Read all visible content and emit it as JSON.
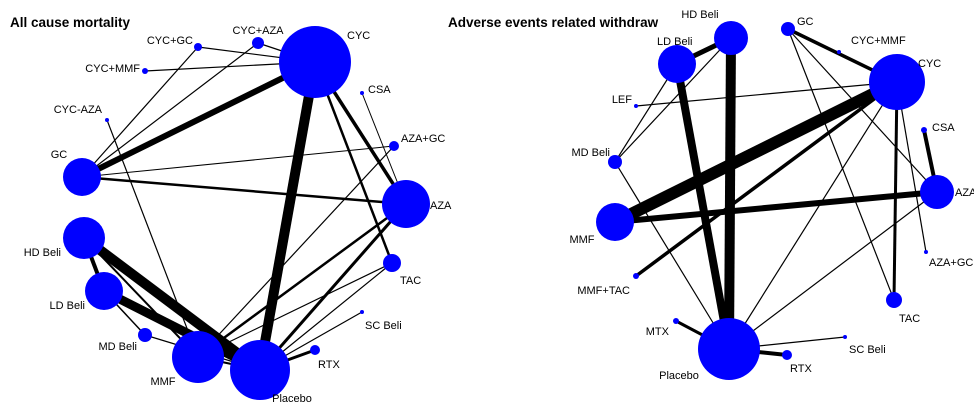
{
  "colors": {
    "node": "#0000ff",
    "edge": "#000000",
    "background": "#ffffff"
  },
  "panels": [
    {
      "id": "left",
      "title": "All cause mortality",
      "nodes": [
        {
          "id": "CYC",
          "label": "CYC",
          "size": 10
        },
        {
          "id": "CYC+AZA",
          "label": "CYC+AZA",
          "size": 1.6
        },
        {
          "id": "CYC+GC",
          "label": "CYC+GC",
          "size": 1.2
        },
        {
          "id": "CYC+MMF",
          "label": "CYC+MMF",
          "size": 0.8
        },
        {
          "id": "CYC-AZA",
          "label": "CYC-AZA",
          "size": 0.6
        },
        {
          "id": "GC",
          "label": "GC",
          "size": 4.6
        },
        {
          "id": "HD Beli",
          "label": "HD Beli",
          "size": 5
        },
        {
          "id": "LD Beli",
          "label": "LD Beli",
          "size": 4.6
        },
        {
          "id": "MD Beli",
          "label": "MD Beli",
          "size": 1.8
        },
        {
          "id": "MMF",
          "label": "MMF",
          "size": 6.2
        },
        {
          "id": "Placebo",
          "label": "Placebo",
          "size": 7.5
        },
        {
          "id": "RTX",
          "label": "RTX",
          "size": 1.2
        },
        {
          "id": "SC Beli",
          "label": "SC Beli",
          "size": 0.6
        },
        {
          "id": "TAC",
          "label": "TAC",
          "size": 2.2
        },
        {
          "id": "AZA",
          "label": "AZA",
          "size": 5.5
        },
        {
          "id": "AZA+GC",
          "label": "AZA+GC",
          "size": 1.2
        },
        {
          "id": "CSA",
          "label": "CSA",
          "size": 0.6
        }
      ],
      "edges": [
        {
          "from": "CYC",
          "to": "GC",
          "weight": 6
        },
        {
          "from": "CYC",
          "to": "Placebo",
          "weight": 10
        },
        {
          "from": "CYC",
          "to": "AZA",
          "weight": 3.5
        },
        {
          "from": "CYC",
          "to": "TAC",
          "weight": 2.5
        },
        {
          "from": "CYC",
          "to": "CYC+AZA",
          "weight": 1.2
        },
        {
          "from": "CYC",
          "to": "CYC+GC",
          "weight": 1.2
        },
        {
          "from": "CYC",
          "to": "CYC+MMF",
          "weight": 1.2
        },
        {
          "from": "CYC+AZA",
          "to": "GC",
          "weight": 1.2
        },
        {
          "from": "CYC+GC",
          "to": "GC",
          "weight": 1.2
        },
        {
          "from": "CYC-AZA",
          "to": "MMF",
          "weight": 1.2
        },
        {
          "from": "GC",
          "to": "AZA",
          "weight": 2.5
        },
        {
          "from": "GC",
          "to": "AZA+GC",
          "weight": 1
        },
        {
          "from": "CSA",
          "to": "AZA",
          "weight": 1
        },
        {
          "from": "HD Beli",
          "to": "LD Beli",
          "weight": 4
        },
        {
          "from": "HD Beli",
          "to": "Placebo",
          "weight": 10
        },
        {
          "from": "HD Beli",
          "to": "MMF",
          "weight": 2
        },
        {
          "from": "LD Beli",
          "to": "Placebo",
          "weight": 9
        },
        {
          "from": "LD Beli",
          "to": "MD Beli",
          "weight": 1.5
        },
        {
          "from": "MD Beli",
          "to": "Placebo",
          "weight": 1.2
        },
        {
          "from": "Placebo",
          "to": "AZA",
          "weight": 3
        },
        {
          "from": "Placebo",
          "to": "TAC",
          "weight": 1.2
        },
        {
          "from": "Placebo",
          "to": "RTX",
          "weight": 3
        },
        {
          "from": "Placebo",
          "to": "SC Beli",
          "weight": 1.2
        },
        {
          "from": "MMF",
          "to": "AZA",
          "weight": 2.5
        },
        {
          "from": "MMF",
          "to": "AZA+GC",
          "weight": 1.2
        },
        {
          "from": "MMF",
          "to": "Placebo",
          "weight": 2
        },
        {
          "from": "MMF",
          "to": "TAC",
          "weight": 1.2
        }
      ]
    },
    {
      "id": "right",
      "title": "Adverse events related withdraw",
      "nodes": [
        {
          "id": "HD Beli",
          "label": "HD Beli",
          "size": 3.2
        },
        {
          "id": "GC",
          "label": "GC",
          "size": 1.2
        },
        {
          "id": "LD Beli",
          "label": "LD Beli",
          "size": 3.6
        },
        {
          "id": "CYC+MMF",
          "label": "CYC+MMF",
          "size": 0.6
        },
        {
          "id": "CYC",
          "label": "CYC",
          "size": 7
        },
        {
          "id": "LEF",
          "label": "LEF",
          "size": 0.6
        },
        {
          "id": "CSA",
          "label": "CSA",
          "size": 0.8
        },
        {
          "id": "MD Beli",
          "label": "MD Beli",
          "size": 1.2
        },
        {
          "id": "AZA",
          "label": "AZA",
          "size": 3
        },
        {
          "id": "MMF",
          "label": "MMF",
          "size": 5
        },
        {
          "id": "AZA+GC",
          "label": "AZA+GC",
          "size": 0.6
        },
        {
          "id": "MMF+TAC",
          "label": "MMF+TAC",
          "size": 0.8
        },
        {
          "id": "TAC",
          "label": "TAC",
          "size": 1.6
        },
        {
          "id": "MTX",
          "label": "MTX",
          "size": 0.8
        },
        {
          "id": "Placebo",
          "label": "Placebo",
          "size": 10
        },
        {
          "id": "RTX",
          "label": "RTX",
          "size": 1.2
        },
        {
          "id": "SC Beli",
          "label": "SC Beli",
          "size": 0.6
        }
      ],
      "edges": [
        {
          "from": "LD Beli",
          "to": "HD Beli",
          "weight": 5
        },
        {
          "from": "HD Beli",
          "to": "Placebo",
          "weight": 10
        },
        {
          "from": "LD Beli",
          "to": "Placebo",
          "weight": 8
        },
        {
          "from": "HD Beli",
          "to": "MD Beli",
          "weight": 1.2
        },
        {
          "from": "LD Beli",
          "to": "MD Beli",
          "weight": 1.2
        },
        {
          "from": "GC",
          "to": "CYC",
          "weight": 3.5
        },
        {
          "from": "GC",
          "to": "AZA",
          "weight": 1.2
        },
        {
          "from": "GC",
          "to": "TAC",
          "weight": 1.2
        },
        {
          "from": "LEF",
          "to": "CYC",
          "weight": 1.2
        },
        {
          "from": "CYC",
          "to": "MMF",
          "weight": 12
        },
        {
          "from": "CYC",
          "to": "TAC",
          "weight": 3
        },
        {
          "from": "CYC",
          "to": "AZA+GC",
          "weight": 1.2
        },
        {
          "from": "CYC",
          "to": "Placebo",
          "weight": 1.2
        },
        {
          "from": "CYC",
          "to": "MMF+TAC",
          "weight": 3.5
        },
        {
          "from": "CSA",
          "to": "AZA",
          "weight": 4
        },
        {
          "from": "MMF",
          "to": "AZA",
          "weight": 6
        },
        {
          "from": "AZA",
          "to": "Placebo",
          "weight": 1.2
        },
        {
          "from": "MD Beli",
          "to": "Placebo",
          "weight": 1.2
        },
        {
          "from": "MTX",
          "to": "Placebo",
          "weight": 3
        },
        {
          "from": "Placebo",
          "to": "RTX",
          "weight": 4
        },
        {
          "from": "Placebo",
          "to": "SC Beli",
          "weight": 1.2
        }
      ]
    }
  ]
}
